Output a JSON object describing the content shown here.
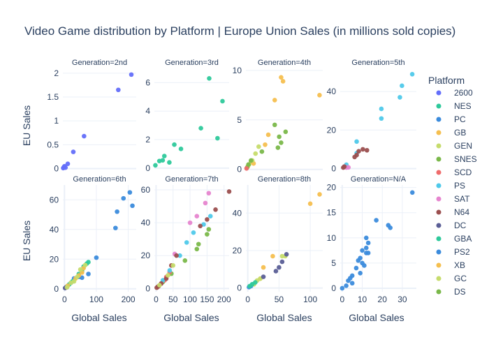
{
  "chart_data": {
    "type": "scatter",
    "title": "Video Game distribution by Platform | Europe Union Sales (in millions sold copies)",
    "xlabel": "Global Sales",
    "ylabel": "EU Sales",
    "legend_title": "Platform",
    "legend_position": "right",
    "grid": true,
    "platforms": [
      {
        "name": "2600",
        "color": "#636efa"
      },
      {
        "name": "NES",
        "color": "#2ec99b"
      },
      {
        "name": "PC",
        "color": "#3b8bdc"
      },
      {
        "name": "GB",
        "color": "#f5bf4f"
      },
      {
        "name": "GEN",
        "color": "#c6dc6c"
      },
      {
        "name": "SNES",
        "color": "#7ab84a"
      },
      {
        "name": "SCD",
        "color": "#ef6b6b"
      },
      {
        "name": "PS",
        "color": "#4fc9ea"
      },
      {
        "name": "SAT",
        "color": "#e685cf"
      },
      {
        "name": "N64",
        "color": "#9b4f4f"
      },
      {
        "name": "DC",
        "color": "#5a5e96"
      },
      {
        "name": "GBA",
        "color": "#2ec99b"
      },
      {
        "name": "PS2",
        "color": "#3b8bdc"
      },
      {
        "name": "XB",
        "color": "#f5bf4f"
      },
      {
        "name": "GC",
        "color": "#c6dc6c"
      },
      {
        "name": "DS",
        "color": "#7ab84a"
      }
    ],
    "facets": [
      {
        "label": "Generation=2nd",
        "xlim": [
          0,
          225
        ],
        "ylim": [
          -0.08,
          2.1
        ],
        "xticks": [],
        "yticks": [
          0,
          0.5,
          1,
          1.5,
          2
        ],
        "series": [
          {
            "platform": "2600",
            "points": [
              [
                1,
                0.01
              ],
              [
                3,
                0.03
              ],
              [
                5,
                0.05
              ],
              [
                8,
                0.02
              ],
              [
                15,
                0.1
              ],
              [
                32,
                0.35
              ],
              [
                65,
                0.68
              ],
              [
                170,
                1.65
              ],
              [
                210,
                1.97
              ]
            ]
          }
        ]
      },
      {
        "label": "Generation=3rd",
        "xlim": [
          0,
          225
        ],
        "ylim": [
          -0.3,
          7.0
        ],
        "xticks": [],
        "yticks": [
          0,
          2,
          4,
          6
        ],
        "series": [
          {
            "platform": "NES",
            "points": [
              [
                3,
                0.2
              ],
              [
                15,
                0.5
              ],
              [
                25,
                0.55
              ],
              [
                30,
                0.85
              ],
              [
                45,
                0.4
              ],
              [
                60,
                1.65
              ],
              [
                80,
                1.35
              ],
              [
                140,
                2.8
              ],
              [
                190,
                2.1
              ],
              [
                205,
                4.7
              ],
              [
                165,
                6.3
              ]
            ]
          }
        ]
      },
      {
        "label": "Generation=4th",
        "xlim": [
          0,
          120
        ],
        "ylim": [
          -0.3,
          10.2
        ],
        "xticks": [],
        "yticks": [
          0,
          5,
          10
        ],
        "series": [
          {
            "platform": "GB",
            "points": [
              [
                3,
                0.3
              ],
              [
                8,
                0.8
              ],
              [
                12,
                0.6
              ],
              [
                30,
                2.5
              ],
              [
                35,
                3.5
              ],
              [
                45,
                7.0
              ],
              [
                55,
                9.3
              ],
              [
                58,
                8.9
              ],
              [
                115,
                7.5
              ]
            ]
          },
          {
            "platform": "GEN",
            "points": [
              [
                5,
                0.5
              ],
              [
                10,
                0.9
              ],
              [
                15,
                1.6
              ],
              [
                20,
                2.3
              ]
            ]
          },
          {
            "platform": "SNES",
            "points": [
              [
                2,
                0.2
              ],
              [
                4,
                0.5
              ],
              [
                8,
                0.9
              ],
              [
                25,
                1.8
              ],
              [
                45,
                4.5
              ],
              [
                50,
                2.2
              ],
              [
                52,
                3.3
              ],
              [
                55,
                2.7
              ],
              [
                62,
                3.8
              ]
            ]
          },
          {
            "platform": "SCD",
            "points": [
              [
                1,
                0.1
              ]
            ]
          }
        ]
      },
      {
        "label": "Generation=5th",
        "xlim": [
          -1,
          36
        ],
        "ylim": [
          -2,
          52
        ],
        "xticks": [],
        "yticks": [
          0,
          20,
          40
        ],
        "series": [
          {
            "platform": "PS",
            "points": [
              [
                1,
                1
              ],
              [
                2,
                2
              ],
              [
                7,
                8
              ],
              [
                7,
                14
              ],
              [
                19,
                26
              ],
              [
                19,
                31
              ],
              [
                28,
                37
              ],
              [
                29,
                43
              ],
              [
                34,
                49
              ]
            ]
          },
          {
            "platform": "SAT",
            "points": [
              [
                1,
                1
              ],
              [
                2,
                0.5
              ],
              [
                3,
                0.6
              ]
            ]
          },
          {
            "platform": "N64",
            "points": [
              [
                0.5,
                0.5
              ],
              [
                1,
                1
              ],
              [
                6,
                6
              ],
              [
                7,
                7
              ],
              [
                8,
                9
              ],
              [
                10,
                10
              ],
              [
                12,
                9.5
              ]
            ]
          }
        ]
      },
      {
        "label": "Generation=6th",
        "xlim": [
          -5,
          225
        ],
        "ylim": [
          -2,
          70
        ],
        "xticks": [
          0,
          100,
          200
        ],
        "yticks": [
          0,
          20,
          40,
          60
        ],
        "series": [
          {
            "platform": "PS2",
            "points": [
              [
                5,
                1
              ],
              [
                10,
                2
              ],
              [
                20,
                4
              ],
              [
                30,
                7
              ],
              [
                45,
                8
              ],
              [
                55,
                7.5
              ],
              [
                75,
                10
              ],
              [
                100,
                21
              ],
              [
                160,
                41
              ],
              [
                165,
                52
              ],
              [
                185,
                61
              ],
              [
                205,
                65
              ],
              [
                213,
                56
              ]
            ]
          },
          {
            "platform": "DC",
            "points": [
              [
                2,
                0.5
              ],
              [
                5,
                1
              ],
              [
                8,
                1.5
              ]
            ]
          },
          {
            "platform": "GBA",
            "points": [
              [
                15,
                3
              ],
              [
                25,
                5
              ],
              [
                45,
                10
              ],
              [
                55,
                12
              ],
              [
                60,
                15
              ],
              [
                70,
                17
              ],
              [
                75,
                18
              ]
            ]
          },
          {
            "platform": "XB",
            "points": [
              [
                10,
                2
              ],
              [
                35,
                7
              ],
              [
                45,
                9
              ],
              [
                55,
                11
              ],
              [
                60,
                14
              ]
            ]
          },
          {
            "platform": "GC",
            "points": [
              [
                8,
                1
              ],
              [
                20,
                4
              ],
              [
                30,
                5
              ],
              [
                40,
                8
              ],
              [
                50,
                13
              ],
              [
                65,
                16
              ]
            ]
          }
        ]
      },
      {
        "label": "Generation=7th",
        "xlim": [
          -5,
          215
        ],
        "ylim": [
          -2,
          63
        ],
        "xticks": [
          0,
          50,
          100,
          150,
          200
        ],
        "yticks": [
          0,
          20,
          40,
          60
        ],
        "series": [
          {
            "platform": "DS",
            "points": [
              [
                5,
                1
              ],
              [
                20,
                4
              ],
              [
                45,
                9
              ],
              [
                85,
                17
              ],
              [
                120,
                24
              ],
              [
                125,
                27
              ],
              [
                150,
                33
              ],
              [
                155,
                36
              ]
            ]
          },
          {
            "platform": "SCD",
            "points": [
              [
                5,
                1
              ],
              [
                15,
                3
              ],
              [
                25,
                5
              ],
              [
                30,
                7
              ],
              [
                40,
                10
              ]
            ]
          },
          {
            "platform": "PS",
            "points": [
              [
                20,
                5
              ],
              [
                40,
                11
              ],
              [
                70,
                20
              ],
              [
                90,
                28
              ],
              [
                110,
                34
              ],
              [
                140,
                39
              ],
              [
                160,
                44
              ]
            ]
          },
          {
            "platform": "SAT",
            "points": [
              [
                55,
                21
              ],
              [
                100,
                40
              ],
              [
                120,
                44
              ],
              [
                145,
                52
              ],
              [
                155,
                58
              ]
            ]
          },
          {
            "platform": "N64",
            "points": [
              [
                2,
                0.5
              ],
              [
                8,
                1.5
              ],
              [
                15,
                3
              ],
              [
                30,
                6
              ],
              [
                45,
                14
              ],
              [
                60,
                20
              ],
              [
                130,
                38
              ],
              [
                150,
                42
              ],
              [
                175,
                48
              ],
              [
                215,
                59
              ]
            ]
          },
          {
            "platform": "GC",
            "points": [
              [
                10,
                2
              ],
              [
                35,
                8
              ],
              [
                50,
                14
              ]
            ]
          }
        ]
      },
      {
        "label": "Generation=8th",
        "xlim": [
          -3,
          120
        ],
        "ylim": [
          -2,
          55
        ],
        "xticks": [
          0,
          50,
          100
        ],
        "yticks": [
          0,
          20,
          40
        ],
        "series": [
          {
            "platform": "PC",
            "points": [
              [
                2,
                0.5
              ],
              [
                5,
                1
              ],
              [
                8,
                2
              ]
            ]
          },
          {
            "platform": "XB",
            "points": [
              [
                20,
                5
              ],
              [
                25,
                11
              ],
              [
                40,
                17
              ],
              [
                100,
                45
              ],
              [
                115,
                50
              ]
            ]
          },
          {
            "platform": "GC",
            "points": [
              [
                10,
                2
              ],
              [
                15,
                4
              ],
              [
                20,
                5
              ],
              [
                55,
                17
              ],
              [
                60,
                17
              ]
            ]
          },
          {
            "platform": "DC",
            "points": [
              [
                25,
                6
              ],
              [
                45,
                9
              ],
              [
                50,
                11
              ],
              [
                55,
                14
              ],
              [
                62,
                18
              ]
            ]
          },
          {
            "platform": "GBA",
            "points": [
              [
                3,
                1
              ],
              [
                7,
                2
              ],
              [
                12,
                3
              ]
            ]
          }
        ]
      },
      {
        "label": "Generation=N/A",
        "xlim": [
          -1,
          37
        ],
        "ylim": [
          -0.7,
          20.5
        ],
        "xticks": [
          0,
          10,
          20,
          30
        ],
        "yticks": [
          0,
          5,
          10,
          15,
          20
        ],
        "series": [
          {
            "platform": "PS2",
            "points": [
              [
                0,
                0
              ],
              [
                2,
                0.5
              ],
              [
                3,
                1.5
              ],
              [
                4,
                2
              ],
              [
                5,
                2.5
              ],
              [
                5,
                1
              ],
              [
                7,
                4
              ],
              [
                8,
                5.5
              ],
              [
                9,
                3
              ],
              [
                9,
                6
              ],
              [
                10,
                7.5
              ],
              [
                10,
                5
              ],
              [
                11,
                4.5
              ],
              [
                12,
                7
              ],
              [
                12,
                8
              ],
              [
                12,
                10
              ],
              [
                13,
                9
              ],
              [
                13,
                7
              ],
              [
                17,
                13.5
              ],
              [
                23,
                12.5
              ],
              [
                24,
                12
              ],
              [
                35,
                19
              ]
            ]
          }
        ]
      }
    ]
  }
}
